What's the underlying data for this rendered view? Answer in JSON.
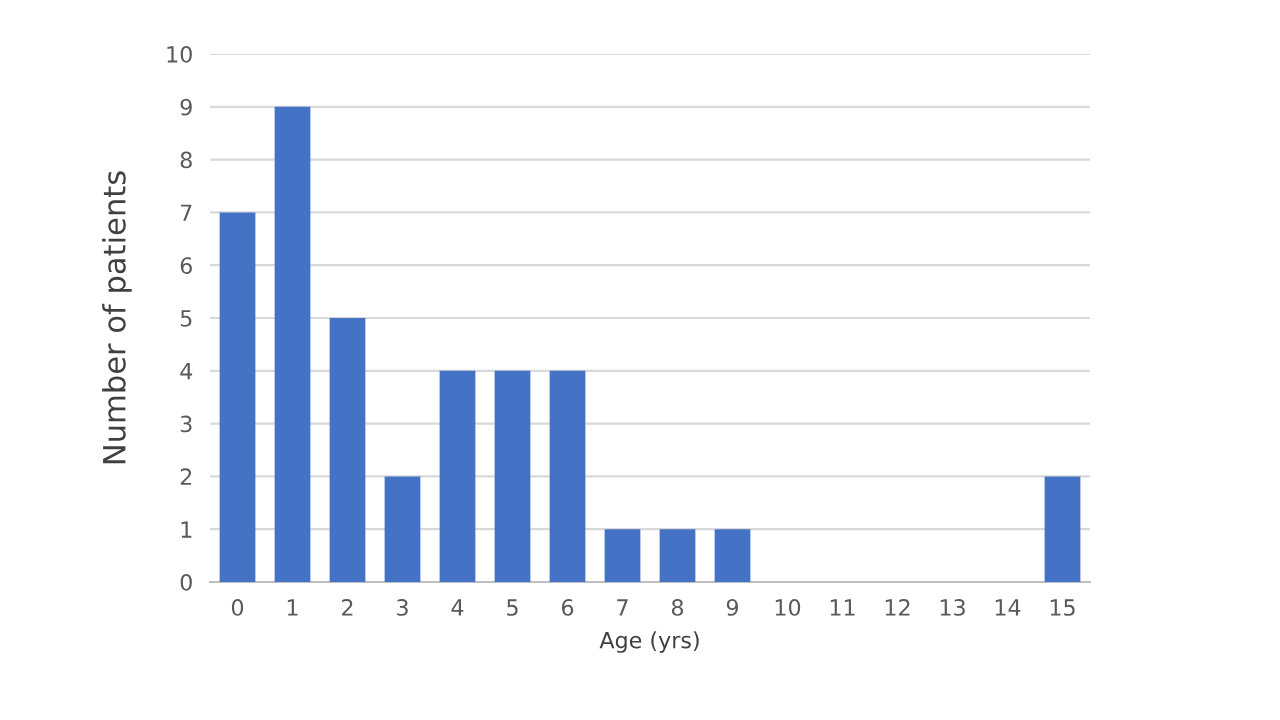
{
  "chart_data": {
    "type": "bar",
    "xlabel": "Age (yrs)",
    "ylabel": "Number of patients",
    "categories": [
      "0",
      "1",
      "2",
      "3",
      "4",
      "5",
      "6",
      "7",
      "8",
      "9",
      "10",
      "11",
      "12",
      "13",
      "14",
      "15"
    ],
    "values": [
      7,
      9,
      5,
      2,
      4,
      4,
      4,
      1,
      1,
      1,
      0,
      0,
      0,
      0,
      0,
      2
    ],
    "color": "#4472c4",
    "ylim": [
      0,
      10
    ],
    "yticks": [
      0,
      1,
      2,
      3,
      4,
      5,
      6,
      7,
      8,
      9,
      10
    ],
    "grid": "y",
    "legend": false
  }
}
